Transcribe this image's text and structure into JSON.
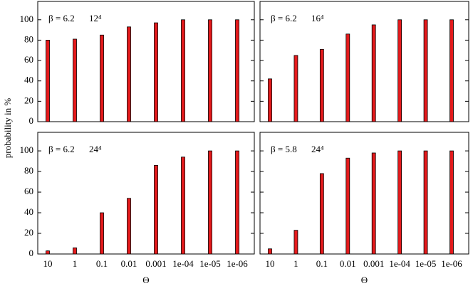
{
  "ylabel": "probability in %",
  "chart_data": [
    {
      "type": "bar",
      "annotation": "β = 6.2",
      "lattice": "12⁴",
      "color": "#e41a1c",
      "values": [
        80,
        81,
        85,
        93,
        97,
        100,
        100,
        100
      ],
      "ylim": [
        0,
        118
      ],
      "yticks": [
        0,
        20,
        40,
        60,
        80,
        100
      ]
    },
    {
      "type": "bar",
      "annotation": "β = 6.2",
      "lattice": "16⁴",
      "color": "#e41a1c",
      "values": [
        42,
        65,
        71,
        86,
        95,
        100,
        100,
        100
      ],
      "ylim": [
        0,
        118
      ],
      "yticks": [
        0,
        20,
        40,
        60,
        80,
        100
      ]
    },
    {
      "type": "bar",
      "annotation": "β = 6.2",
      "lattice": "24⁴",
      "color": "#e41a1c",
      "xlabel": "Θ",
      "categories": [
        "10",
        "1",
        "0.1",
        "0.01",
        "0.001",
        "1e-04",
        "1e-05",
        "1e-06"
      ],
      "values": [
        3,
        6,
        40,
        54,
        86,
        94,
        100,
        100
      ],
      "ylim": [
        0,
        118
      ],
      "yticks": [
        0,
        20,
        40,
        60,
        80,
        100
      ]
    },
    {
      "type": "bar",
      "annotation": "β = 5.8",
      "lattice": "24⁴",
      "color": "#e41a1c",
      "xlabel": "Θ",
      "categories": [
        "10",
        "1",
        "0.1",
        "0.01",
        "0.001",
        "1e-04",
        "1e-05",
        "1e-06"
      ],
      "values": [
        5,
        23,
        78,
        93,
        98,
        100,
        100,
        100
      ],
      "ylim": [
        0,
        118
      ],
      "yticks": [
        0,
        20,
        40,
        60,
        80,
        100
      ]
    }
  ]
}
